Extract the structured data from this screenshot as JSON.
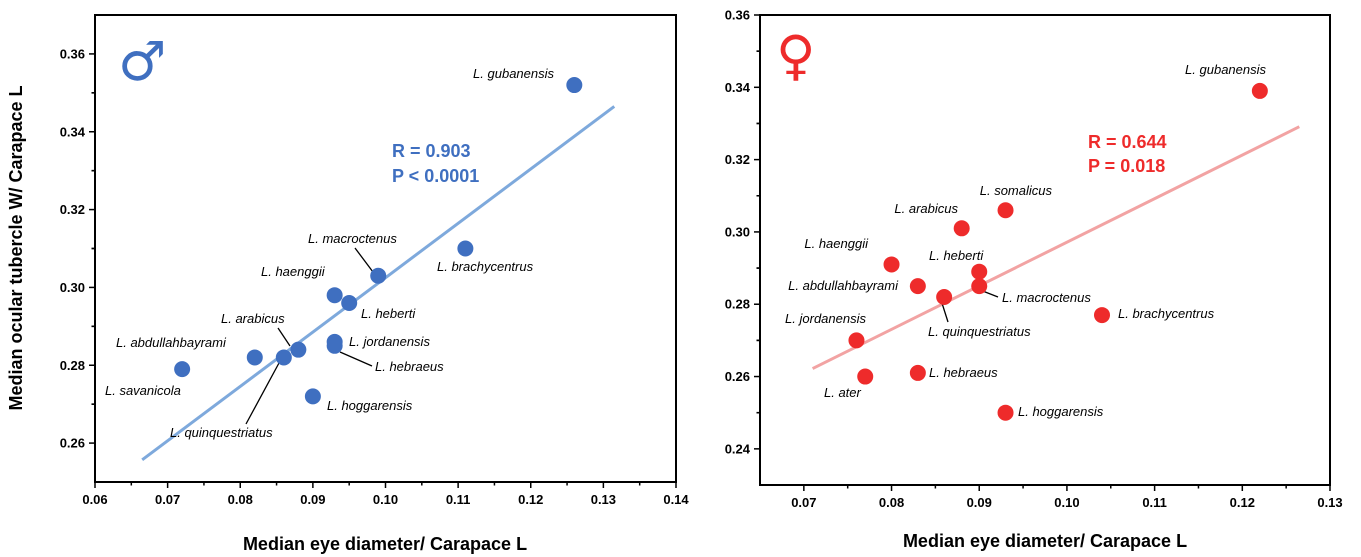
{
  "chart_data": [
    {
      "type": "scatter",
      "sex_symbol": "♂",
      "color": "#3f6fc0",
      "line_color": "#7ea9dc",
      "xlabel": "Median eye diameter/ Carapace L",
      "ylabel": "Median ocular tubercle W/ Carapace L",
      "xlim": [
        0.06,
        0.14
      ],
      "ylim": [
        0.25,
        0.37
      ],
      "xticks": [
        "0.06",
        "0.07",
        "0.08",
        "0.09",
        "0.10",
        "0.11",
        "0.12",
        "0.13",
        "0.14"
      ],
      "yticks": [
        "0.26",
        "0.28",
        "0.30",
        "0.32",
        "0.34",
        "0.36"
      ],
      "stats": [
        "R = 0.903",
        "P < 0.0001"
      ],
      "fit": {
        "x": [
          0.0665,
          0.1315
        ],
        "y": [
          0.2557,
          0.3465
        ]
      },
      "points": [
        {
          "label": "L. gubanensis",
          "x": 0.126,
          "y": 0.352
        },
        {
          "label": "L. brachycentrus",
          "x": 0.111,
          "y": 0.31
        },
        {
          "label": "L. macroctenus",
          "x": 0.099,
          "y": 0.303
        },
        {
          "label": "L. haenggii",
          "x": 0.093,
          "y": 0.298
        },
        {
          "label": "L. heberti",
          "x": 0.095,
          "y": 0.296
        },
        {
          "label": "L. jordanensis",
          "x": 0.093,
          "y": 0.286
        },
        {
          "label": "L. hebraeus",
          "x": 0.093,
          "y": 0.285
        },
        {
          "label": "L. arabicus",
          "x": 0.088,
          "y": 0.284
        },
        {
          "label": "L. abdullahbayrami",
          "x": 0.082,
          "y": 0.282
        },
        {
          "label": "L. quinquestriatus",
          "x": 0.086,
          "y": 0.282
        },
        {
          "label": "L. savanicola",
          "x": 0.072,
          "y": 0.279
        },
        {
          "label": "L. hoggarensis",
          "x": 0.09,
          "y": 0.272
        }
      ]
    },
    {
      "type": "scatter",
      "sex_symbol": "♀",
      "color": "#ee2b2b",
      "line_color": "#f2a3a3",
      "xlabel": "Median eye diameter/ Carapace L",
      "ylabel": "",
      "xlim": [
        0.065,
        0.13
      ],
      "ylim": [
        0.23,
        0.36
      ],
      "xticks": [
        "0.07",
        "0.08",
        "0.09",
        "0.10",
        "0.11",
        "0.12",
        "0.13"
      ],
      "yticks": [
        "0.24",
        "0.26",
        "0.28",
        "0.30",
        "0.32",
        "0.34",
        "0.36"
      ],
      "stats": [
        "R = 0.644",
        "P = 0.018"
      ],
      "fit": {
        "x": [
          0.071,
          0.1265
        ],
        "y": [
          0.2622,
          0.3291
        ]
      },
      "points": [
        {
          "label": "L. gubanensis",
          "x": 0.122,
          "y": 0.339
        },
        {
          "label": "L. somalicus",
          "x": 0.093,
          "y": 0.306
        },
        {
          "label": "L. arabicus",
          "x": 0.088,
          "y": 0.301
        },
        {
          "label": "L. haenggii",
          "x": 0.08,
          "y": 0.291
        },
        {
          "label": "L. heberti",
          "x": 0.09,
          "y": 0.289
        },
        {
          "label": "L. abdullahbayrami",
          "x": 0.083,
          "y": 0.285
        },
        {
          "label": "L. macroctenus",
          "x": 0.09,
          "y": 0.285
        },
        {
          "label": "L. quinquestriatus",
          "x": 0.086,
          "y": 0.282
        },
        {
          "label": "L. brachycentrus",
          "x": 0.104,
          "y": 0.277
        },
        {
          "label": "L. jordanensis",
          "x": 0.076,
          "y": 0.27
        },
        {
          "label": "L. hebraeus",
          "x": 0.083,
          "y": 0.261
        },
        {
          "label": "L. ater",
          "x": 0.077,
          "y": 0.26
        },
        {
          "label": "L. hoggarensis",
          "x": 0.093,
          "y": 0.25
        }
      ]
    }
  ]
}
